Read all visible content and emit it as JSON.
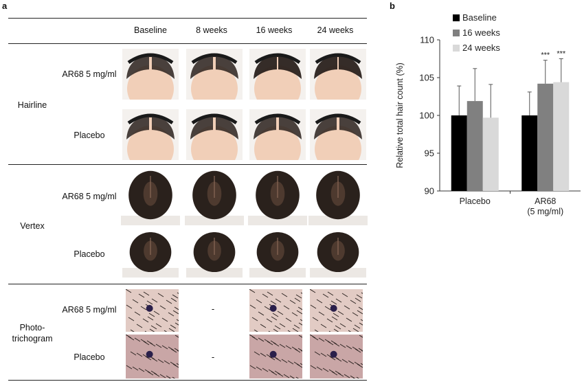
{
  "panel_a": {
    "letter": "a",
    "columns": [
      "Baseline",
      "8 weeks",
      "16 weeks",
      "24 weeks"
    ],
    "groups": [
      {
        "label": "Hairline",
        "rows": [
          "AR68 5 mg/ml",
          "Placebo"
        ]
      },
      {
        "label": "Vertex",
        "rows": [
          "AR68 5 mg/ml",
          "Placebo"
        ]
      },
      {
        "label": "Photo-\ntrichogram",
        "rows": [
          "AR68 5 mg/ml",
          "Placebo"
        ]
      }
    ],
    "missing_mark": "-"
  },
  "panel_b": {
    "letter": "b"
  },
  "colors": {
    "baseline": "#000000",
    "w16": "#808080",
    "w24": "#d9d9d9",
    "skin": "#f1cfb8",
    "hair": "#2a211c",
    "scalp": "#c9a6a6"
  },
  "chart_data": {
    "type": "bar",
    "categories": [
      "Placebo",
      "AR68\n(5 mg/ml)"
    ],
    "series": [
      {
        "name": "Baseline",
        "values": [
          100.0,
          100.0
        ],
        "errors": [
          3.9,
          3.1
        ],
        "color": "#000000"
      },
      {
        "name": "16 weeks",
        "values": [
          101.9,
          104.2
        ],
        "errors": [
          4.3,
          3.1
        ],
        "color": "#808080"
      },
      {
        "name": "24 weeks",
        "values": [
          99.7,
          104.4
        ],
        "errors": [
          4.4,
          3.1
        ],
        "color": "#d9d9d9"
      }
    ],
    "annotations": [
      {
        "category": 1,
        "series": 1,
        "text": "***"
      },
      {
        "category": 1,
        "series": 2,
        "text": "***"
      }
    ],
    "ylabel": "Relative total hair count (%)",
    "ylim": [
      90,
      110
    ],
    "yticks": [
      90,
      95,
      100,
      105,
      110
    ],
    "legend": "top-left",
    "grid": false
  }
}
